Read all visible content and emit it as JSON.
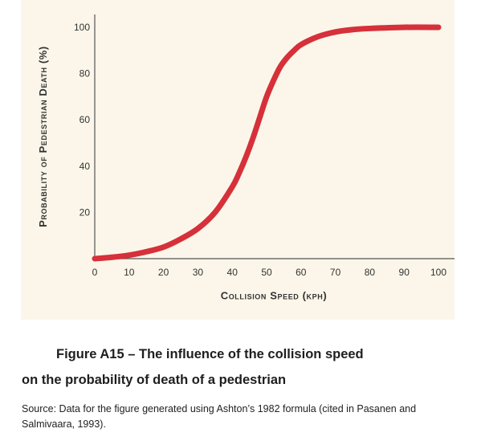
{
  "figure": {
    "title_line1": "Figure A15 – The influence of the collision speed",
    "title_line2": "on the probability of death of a pedestrian",
    "source": "Source: Data for the figure generated using Ashton’s 1982 formula (cited in Pasanen and Salmivaara, 1993)."
  },
  "colors": {
    "panel_background": "#fbf6e9",
    "curve": "#d6303a",
    "axis": "#555555"
  },
  "chart_data": {
    "type": "line",
    "xlabel": "Collision Speed (kph)",
    "ylabel": "Probability of Pedestrian Death (%)",
    "xlim": [
      0,
      100
    ],
    "ylim": [
      0,
      100
    ],
    "xticks": [
      0,
      10,
      20,
      30,
      40,
      50,
      60,
      70,
      80,
      90,
      100
    ],
    "yticks": [
      20,
      40,
      60,
      80,
      100
    ],
    "grid": false,
    "series": [
      {
        "x": [
          0,
          5,
          10,
          15,
          20,
          25,
          30,
          35,
          40,
          42,
          44,
          46,
          48,
          50,
          52,
          54,
          56,
          58,
          60,
          65,
          70,
          75,
          80,
          90,
          100
        ],
        "y": [
          0,
          0.6,
          1.5,
          3,
          5,
          8.5,
          13,
          20,
          31,
          37,
          44,
          52,
          61,
          70,
          77,
          83,
          87,
          90,
          92.5,
          96,
          98,
          99,
          99.5,
          100,
          100
        ]
      }
    ]
  }
}
